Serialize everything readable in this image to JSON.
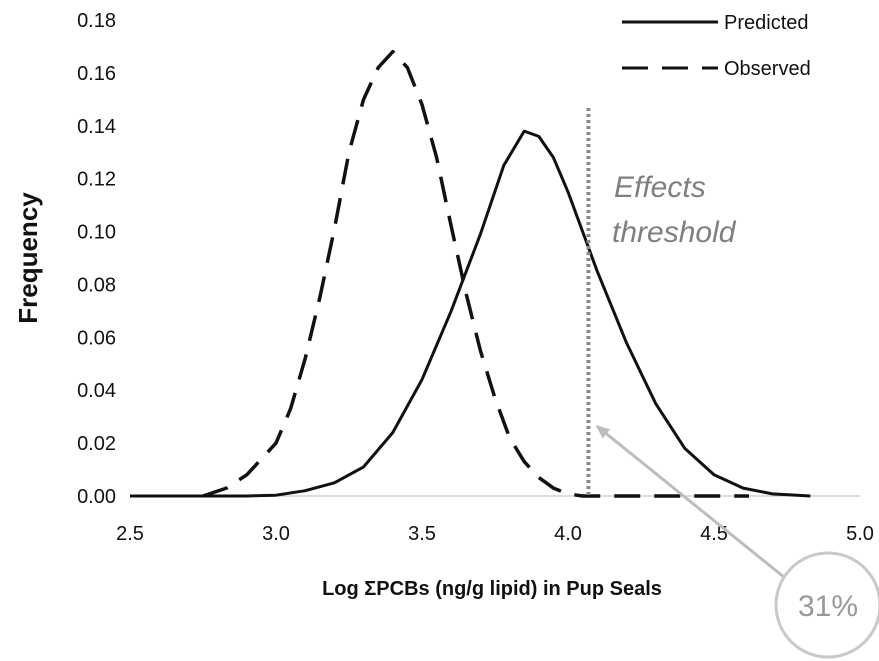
{
  "chart_data": {
    "type": "line",
    "title": "",
    "xlabel": "Log ΣPCBs (ng/g lipid) in Pup Seals",
    "ylabel": "Frequency",
    "xlim": [
      2.5,
      5.0
    ],
    "ylim": [
      0.0,
      0.18
    ],
    "x_ticks": [
      "2.5",
      "3.0",
      "3.5",
      "4.0",
      "4.5",
      "5.0"
    ],
    "y_ticks": [
      "0.00",
      "0.02",
      "0.04",
      "0.06",
      "0.08",
      "0.10",
      "0.12",
      "0.14",
      "0.16",
      "0.18"
    ],
    "grid": false,
    "legend_position": "top-right",
    "series": [
      {
        "name": "Predicted",
        "style": "solid",
        "color": "#111111",
        "x": [
          2.5,
          2.7,
          2.9,
          3.0,
          3.1,
          3.2,
          3.3,
          3.4,
          3.5,
          3.6,
          3.7,
          3.78,
          3.85,
          3.9,
          3.95,
          4.0,
          4.1,
          4.2,
          4.3,
          4.4,
          4.5,
          4.6,
          4.7,
          4.83
        ],
        "y": [
          0.0,
          0.0,
          0.0,
          0.0003,
          0.002,
          0.005,
          0.011,
          0.024,
          0.044,
          0.07,
          0.099,
          0.125,
          0.138,
          0.136,
          0.128,
          0.115,
          0.085,
          0.058,
          0.035,
          0.018,
          0.008,
          0.003,
          0.0008,
          0.0
        ]
      },
      {
        "name": "Observed",
        "style": "dashed",
        "color": "#111111",
        "x": [
          2.75,
          2.83,
          2.9,
          2.95,
          3.0,
          3.05,
          3.1,
          3.15,
          3.2,
          3.25,
          3.3,
          3.35,
          3.4,
          3.45,
          3.5,
          3.55,
          3.6,
          3.65,
          3.7,
          3.75,
          3.8,
          3.85,
          3.9,
          3.95,
          4.0,
          4.05,
          4.1,
          4.2,
          4.3,
          4.4,
          4.5,
          4.62
        ],
        "y": [
          0.0,
          0.003,
          0.008,
          0.014,
          0.02,
          0.033,
          0.052,
          0.075,
          0.101,
          0.13,
          0.15,
          0.162,
          0.168,
          0.162,
          0.148,
          0.128,
          0.102,
          0.077,
          0.055,
          0.037,
          0.022,
          0.013,
          0.007,
          0.003,
          0.0008,
          0.0,
          0.0,
          0.0,
          0.0,
          0.0,
          0.0,
          0.0
        ]
      }
    ],
    "threshold": {
      "x": 4.07,
      "style": "dotted",
      "label_line1": "Effects",
      "label_line2": "threshold"
    },
    "callout": {
      "text": "31%",
      "arrow_target": {
        "x": 4.1,
        "y": 0.015
      }
    },
    "colors": {
      "curve": "#111111",
      "threshold": "#8a8a8a",
      "annotation": "#7f7f7f",
      "callout": "#999999"
    }
  }
}
